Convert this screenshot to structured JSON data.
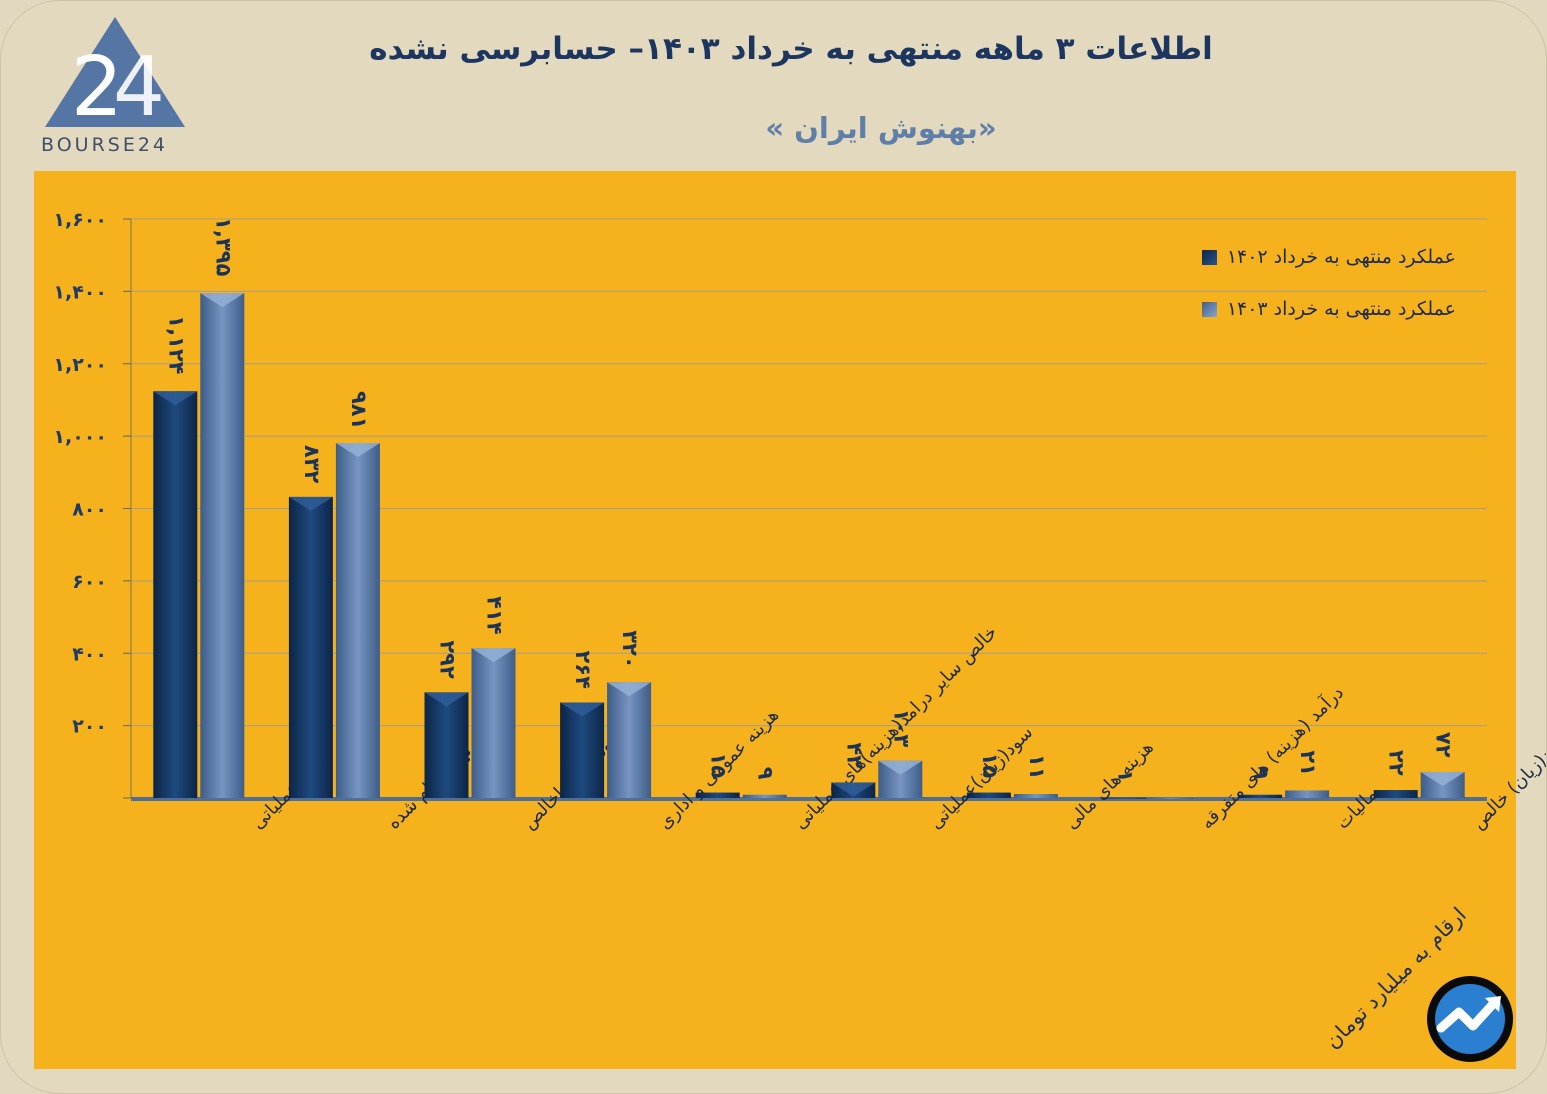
{
  "header": {
    "title": "اطلاعات ۳ ماهه منتهی به خرداد ۱۴۰۳– حسابرسی نشده",
    "subtitle": "«بهنوش ایران »",
    "logo_text": "BOURSE24",
    "logo_icon": "triangle-24-logo-icon"
  },
  "unit_note": "ارقام به میلیارد تومان",
  "badge_icon": "trend-arrow-icon",
  "colors": {
    "background": "#e3d9bf",
    "panel": "#f5b21c",
    "series_1402": "#163a66",
    "series_1403": "#5b7dab",
    "title": "#1d3660"
  },
  "chart_data": {
    "type": "bar",
    "categories": [
      "درآمد عملیاتی",
      "بهای تمام شده",
      "سود(زیان)ناخالص",
      "هزینه عمومی و اداری",
      "خالص سایر درامد(هزینه)های عملیاتی",
      "سود(زیان)عملیاتی",
      "هزینه های مالی",
      "درآمد (هزینه) های متفرقه",
      "مالیات",
      "سود(زیان) خالص"
    ],
    "series": [
      {
        "name": "عملکرد منتهی به خرداد ۱۴۰۲",
        "values": [
          1124,
          832,
          292,
          264,
          15,
          43,
          15,
          1,
          9,
          22
        ],
        "labels": [
          "۱,۱۲۴",
          "۸۳۲",
          "۲۹۲",
          "۲۶۴",
          "۱۵",
          "۴۳",
          "۱۵",
          "۱",
          "۹",
          "۲۲"
        ]
      },
      {
        "name": "عملکرد منتهی به خرداد ۱۴۰۳",
        "values": [
          1395,
          981,
          414,
          320,
          9,
          103,
          11,
          1,
          21,
          72
        ],
        "labels": [
          "۱,۳۹۵",
          "۹۸۱",
          "۴۱۴",
          "۳۲۰",
          "۹",
          "۱۰۳",
          "۱۱",
          "",
          "۲۱",
          "۷۲"
        ]
      }
    ],
    "yticks": [
      "",
      "۲۰۰",
      "۴۰۰",
      "۶۰۰",
      "۸۰۰",
      "۱,۰۰۰",
      "۱,۲۰۰",
      "۱,۴۰۰",
      "۱,۶۰۰"
    ],
    "ylim": [
      0,
      1600
    ],
    "grid": true,
    "legend_position": "top-right"
  }
}
